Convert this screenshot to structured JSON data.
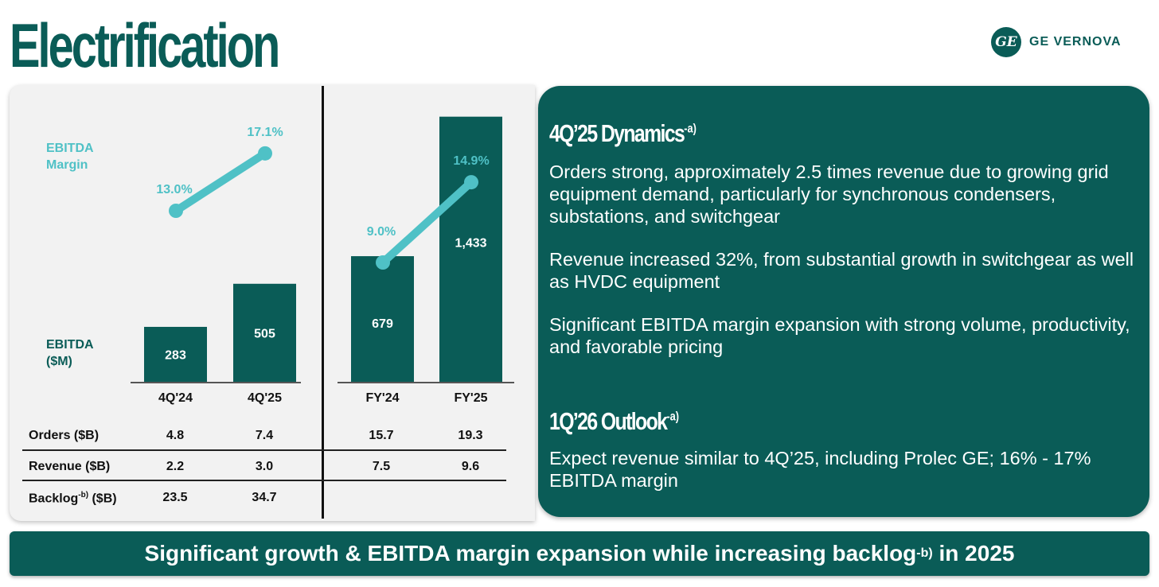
{
  "page_title": "Electrification",
  "logo": {
    "mark": "GE",
    "text": "GE VERNOVA"
  },
  "labels": {
    "margin_label": [
      "EBITDA",
      "Margin"
    ],
    "ebitda_label": [
      "EBITDA",
      "($M)"
    ]
  },
  "chart_data": {
    "type": "bar",
    "panels": [
      {
        "categories": [
          "4Q'24",
          "4Q'25"
        ],
        "series": [
          {
            "name": "EBITDA ($M)",
            "values": [
              283,
              505
            ]
          },
          {
            "name": "EBITDA Margin",
            "values": [
              13.0,
              17.1
            ],
            "labels": [
              "13.0%",
              "17.1%"
            ]
          }
        ]
      },
      {
        "categories": [
          "FY'24",
          "FY'25"
        ],
        "series": [
          {
            "name": "EBITDA ($M)",
            "values": [
              679,
              1433
            ],
            "labels": [
              "679",
              "1,433"
            ]
          },
          {
            "name": "EBITDA Margin",
            "values": [
              9.0,
              14.9
            ],
            "labels": [
              "9.0%",
              "14.9%"
            ]
          }
        ]
      }
    ],
    "bar_color": "#0a5c57",
    "line_color": "#4fc1c6"
  },
  "table": {
    "rows": [
      {
        "label": "Orders ($B)",
        "values": [
          "4.8",
          "7.4",
          "15.7",
          "19.3"
        ]
      },
      {
        "label": "Revenue ($B)",
        "values": [
          "2.2",
          "3.0",
          "7.5",
          "9.6"
        ]
      },
      {
        "label": "Backlog",
        "label_sup": "-b)",
        "label_suffix": " ($B)",
        "values": [
          "23.5",
          "34.7",
          "",
          ""
        ]
      }
    ]
  },
  "dynamics": {
    "heading": "4Q’25 Dynamics",
    "heading_sup": "-a)",
    "bullets": [
      "Orders strong, approximately 2.5 times revenue due to growing grid equipment demand, particularly for synchronous condensers, substations, and switchgear",
      "Revenue increased 32%, from substantial growth in switchgear as well as HVDC equipment",
      "Significant EBITDA margin expansion with strong volume, productivity, and favorable pricing"
    ]
  },
  "outlook": {
    "heading": "1Q’26 Outlook",
    "heading_sup": "-a)",
    "text": "Expect revenue similar to 4Q’25, including Prolec GE; 16% - 17% EBITDA margin"
  },
  "banner": {
    "text_before": "Significant growth & EBITDA margin expansion while increasing backlog",
    "sup": "-b)",
    "text_after": " in 2025"
  },
  "colors": {
    "primary": "#0a5c57",
    "accent": "#4fc1c6"
  }
}
